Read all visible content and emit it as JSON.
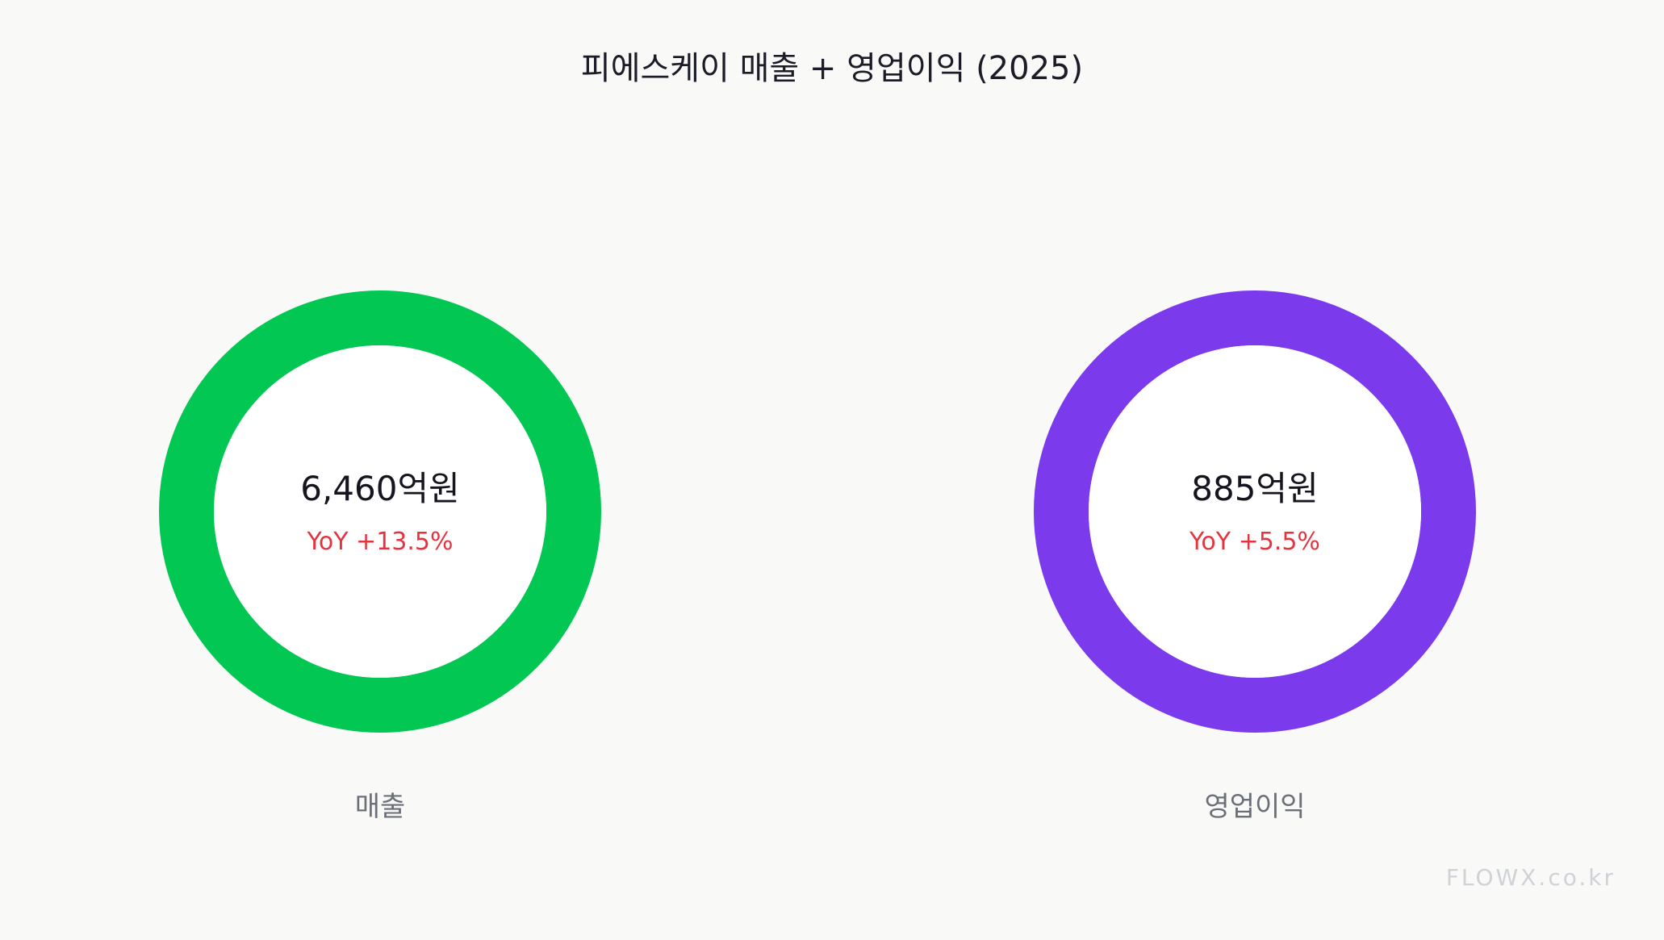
{
  "chart_data": {
    "type": "pie",
    "title": "피에스케이  매출 + 영업이익 (2025)",
    "items": [
      {
        "label": "매출",
        "value_text": "6,460억원",
        "value": 6460,
        "unit": "억원",
        "yoy_text": "YoY +13.5%",
        "yoy": 13.5,
        "color": "#02c753"
      },
      {
        "label": "영업이익",
        "value_text": "885억원",
        "value": 885,
        "unit": "억원",
        "yoy_text": "YoY +5.5%",
        "yoy": 5.5,
        "color": "#7c3aed"
      }
    ],
    "yoy_color": "#e5343f"
  },
  "watermark": "FLOWX.co.kr"
}
